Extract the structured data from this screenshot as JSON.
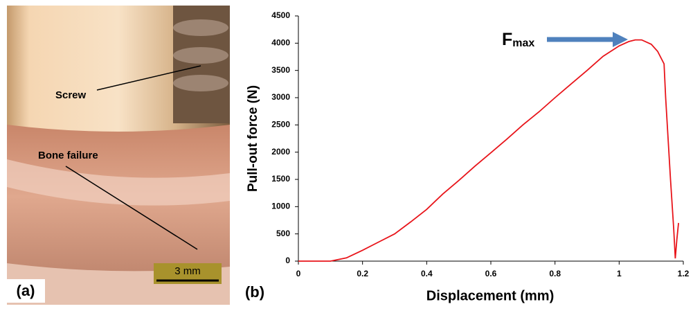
{
  "photo": {
    "panel_label": "(a)",
    "labels": [
      "Screw",
      "Bone failure"
    ],
    "scale_bar": "3 mm"
  },
  "chart_data": {
    "type": "line",
    "panel_label": "(b)",
    "x_label": "Displacement (mm)",
    "y_label": "Pull-out force (N)",
    "annotation": "F",
    "annotation_subscript": "max",
    "x": [
      0,
      0.1,
      0.15,
      0.2,
      0.25,
      0.3,
      0.35,
      0.4,
      0.45,
      0.5,
      0.55,
      0.6,
      0.65,
      0.7,
      0.75,
      0.8,
      0.85,
      0.9,
      0.95,
      1.0,
      1.03,
      1.05,
      1.07,
      1.1,
      1.12,
      1.14,
      1.145,
      1.16,
      1.17,
      1.175,
      1.18,
      1.185
    ],
    "series": [
      {
        "name": null,
        "color": "#e8141a",
        "values": [
          0,
          0,
          60,
          200,
          350,
          500,
          720,
          950,
          1230,
          1480,
          1740,
          1990,
          2240,
          2500,
          2740,
          3000,
          3250,
          3500,
          3760,
          3950,
          4030,
          4060,
          4060,
          3980,
          3850,
          3620,
          3000,
          1500,
          600,
          50,
          400,
          700
        ]
      }
    ],
    "xlim": [
      0,
      1.2
    ],
    "xticks": [
      0,
      0.2,
      0.4,
      0.6,
      0.8,
      1,
      1.2
    ],
    "ylim": [
      0,
      4500
    ],
    "yticks": [
      0,
      500,
      1000,
      1500,
      2000,
      2500,
      3000,
      3500,
      4000,
      4500
    ],
    "grid": false,
    "arrow_color": "#4f81bd"
  }
}
